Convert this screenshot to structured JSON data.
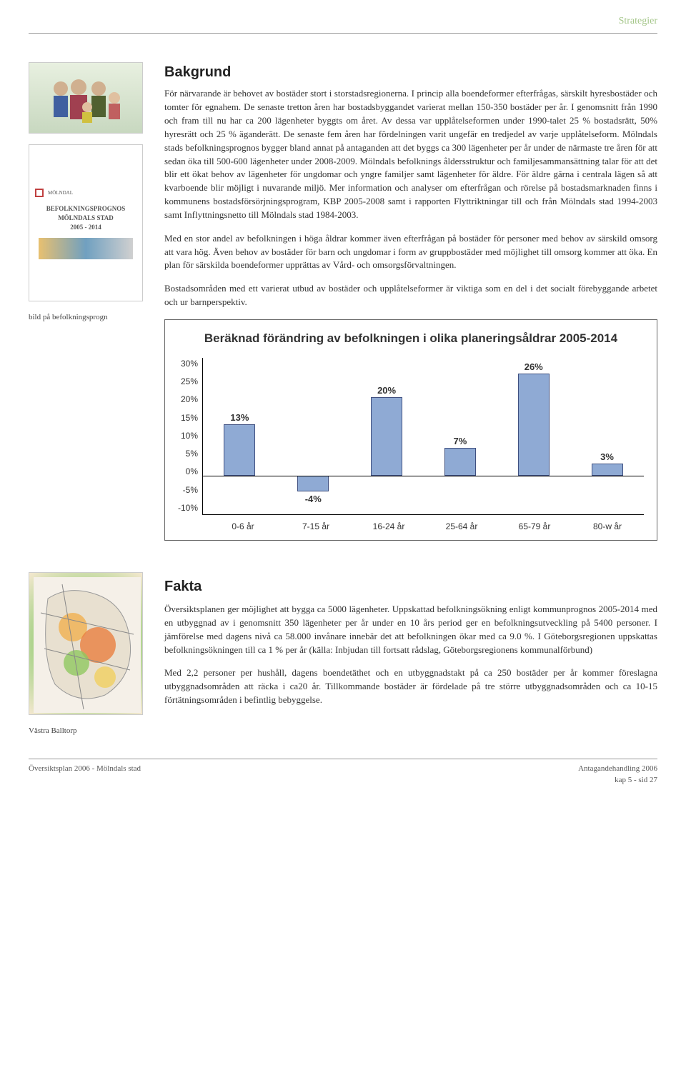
{
  "header": {
    "category": "Strategier"
  },
  "bakgrund": {
    "title": "Bakgrund",
    "p1": "För närvarande är behovet av bostäder stort i storstadsregionerna. I princip alla boendeformer efterfrågas, särskilt hyresbostäder och tomter för egnahem. De senaste tretton åren har bostadsbyggandet varierat mellan 150-350 bostäder per år. I genomsnitt från 1990 och fram till nu har ca 200 lägenheter byggts om året. Av dessa var upplåtelseformen under 1990-talet 25 % bostadsrätt, 50% hyresrätt och 25 % äganderätt. De senaste fem åren har fördelningen varit ungefär en tredjedel av varje upplåtelseform. Mölndals stads befolkningsprognos bygger bland annat på antaganden att det byggs ca 300 lägenheter per år under de närmaste tre åren för att sedan öka till 500-600 lägenheter under 2008-2009. Mölndals befolknings åldersstruktur och familjesammansättning talar för att det blir ett ökat behov av lägenheter för ungdomar och yngre familjer samt lägenheter för äldre. För äldre gärna i centrala lägen så att kvarboende blir möjligt i nuvarande miljö. Mer information och analyser om efterfrågan och rörelse på bostadsmarknaden finns i kommunens bostadsförsörjningsprogram, KBP 2005-2008 samt i rapporten Flyttriktningar till och från Mölndals stad 1994-2003 samt Inflyttningsnetto till Mölndals stad 1984-2003.",
    "p2": "Med en stor andel av befolkningen i höga åldrar kommer även efterfrågan på bostäder för personer med behov av särskild omsorg att vara hög. Även behov av bostäder för barn och ungdomar i form av gruppbostäder med möjlighet till omsorg kommer att öka. En plan för särskilda boendeformer upprättas av Vård- och omsorgsförvaltningen.",
    "p3": "Bostadsområden med ett varierat utbud av bostäder och upplåtelseformer är viktiga som en del i det socialt förebyggande arbetet och ur barnperspektiv."
  },
  "sidebar": {
    "doc_title_line1": "BEFOLKNINGSPROGNOS",
    "doc_title_line2": "MÖLNDALS STAD",
    "doc_title_line3": "2005 - 2014",
    "doc_caption": "bild på befolkningsprogn",
    "map_caption": "Västra Balltorp"
  },
  "chart": {
    "type": "bar",
    "title": "Beräknad förändring av befolkningen i olika planeringsåldrar 2005-2014",
    "title_fontsize": 17,
    "categories": [
      "0-6 år",
      "7-15 år",
      "16-24 år",
      "25-64 år",
      "65-79 år",
      "80-w år"
    ],
    "values": [
      13,
      -4,
      20,
      7,
      26,
      3
    ],
    "value_labels": [
      "13%",
      "-4%",
      "20%",
      "7%",
      "26%",
      "3%"
    ],
    "bar_color": "#8faad4",
    "bar_border": "#405080",
    "ymin": -10,
    "ymax": 30,
    "ytick_step": 5,
    "yticks": [
      "30%",
      "25%",
      "20%",
      "15%",
      "10%",
      "5%",
      "0%",
      "-5%",
      "-10%"
    ],
    "background_color": "#ffffff",
    "border_color": "#666666",
    "label_fontsize": 12,
    "value_label_fontsize": 13
  },
  "fakta": {
    "title": "Fakta",
    "p1": "Översiktsplanen ger möjlighet att bygga ca 5000 lägenheter. Uppskattad befolkningsökning enligt kommunprognos 2005-2014 med en utbyggnad av i genomsnitt 350 lägenheter per år under en 10 års period ger en befolkningsutveckling på 5400 personer. I jämförelse med dagens nivå ca 58.000 invånare innebär det att befolkningen ökar med ca 9.0 %. I Göteborgsregionen uppskattas befolkningsökningen till ca 1 % per år (källa: Inbjudan till fortsatt rådslag, Göteborgsregionens kommunalförbund)",
    "p2": "Med 2,2 personer per hushåll, dagens boendetäthet och en utbyggnadstakt på ca 250 bostäder per år kommer föreslagna utbyggnadsområden att räcka i ca20 år. Tillkommande bostäder är fördelade på tre större utbyggnadsområden och ca 10-15 förtätningsområden i befintlig bebyggelse."
  },
  "footer": {
    "left": "Översiktsplan 2006 - Mölndals stad",
    "right_line1": "Antagandehandling 2006",
    "right_line2": "kap 5 - sid 27"
  }
}
